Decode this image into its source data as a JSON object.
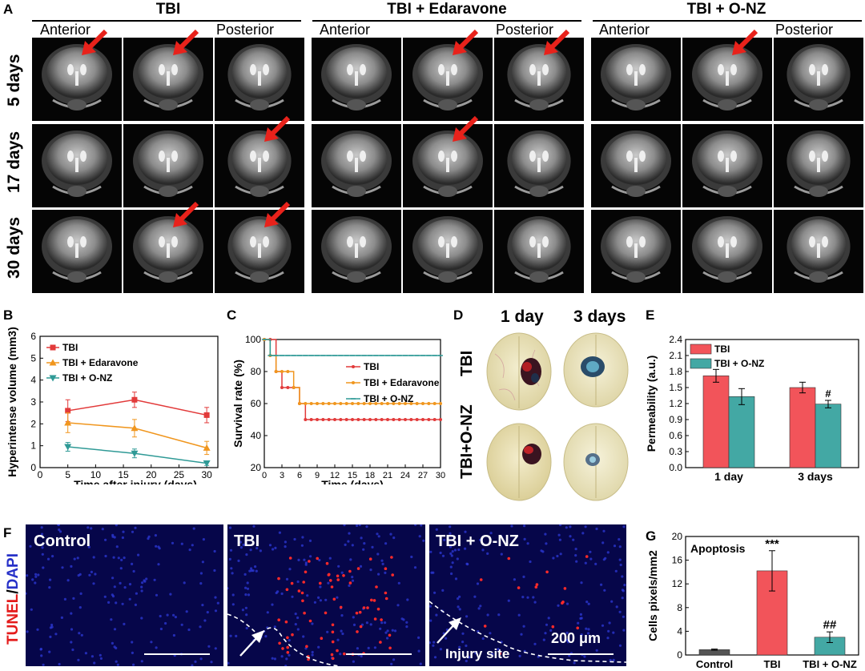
{
  "panel_letters": {
    "a": "A",
    "b": "B",
    "c": "C",
    "d": "D",
    "e": "E",
    "f": "F",
    "g": "G"
  },
  "panel_a": {
    "groups": [
      "TBI",
      "TBI + Edaravone",
      "TBI + O-NZ"
    ],
    "anterior_label": "Anterior",
    "posterior_label": "Posterior",
    "rows": [
      "5 days",
      "17 days",
      "30 days"
    ],
    "arrows": [
      [
        [
          true,
          true,
          false
        ],
        [
          false,
          true,
          true
        ],
        [
          false,
          true,
          false
        ]
      ],
      [
        [
          false,
          false,
          true
        ],
        [
          false,
          true,
          false
        ],
        [
          false,
          false,
          false
        ]
      ],
      [
        [
          false,
          true,
          true
        ],
        [
          false,
          false,
          false
        ],
        [
          false,
          false,
          false
        ]
      ]
    ],
    "arrow_color": "#e8221b"
  },
  "panel_d": {
    "col_labels": [
      "1 day",
      "3 days"
    ],
    "row_labels": [
      "TBI",
      "TBI+O-NZ"
    ]
  },
  "panel_f": {
    "side_label_red": "TUNEL",
    "side_label_sep": "/",
    "side_label_blue": "DAPI",
    "images": [
      "Control",
      "TBI",
      "TBI + O-NZ"
    ],
    "scale_bar": "200 μm",
    "injury_label": "Injury site"
  },
  "chart_data": [
    {
      "panel": "B",
      "type": "line",
      "xlabel": "Time after injury (days)",
      "ylabel": "Hyperintense volume (mm3)",
      "xlim": [
        0,
        32
      ],
      "ylim": [
        0,
        6
      ],
      "xticks": [
        0,
        5,
        10,
        15,
        20,
        25,
        30
      ],
      "yticks": [
        0,
        1,
        2,
        3,
        4,
        5,
        6
      ],
      "legend": "top-left",
      "x": [
        5,
        17,
        30
      ],
      "series": [
        {
          "name": "TBI",
          "values": [
            2.6,
            3.1,
            2.4
          ],
          "errors": [
            0.5,
            0.35,
            0.35
          ],
          "color": "#e23a3a",
          "marker": "square"
        },
        {
          "name": "TBI + Edaravone",
          "values": [
            2.05,
            1.8,
            0.9
          ],
          "errors": [
            0.45,
            0.4,
            0.3
          ],
          "color": "#f0961e",
          "marker": "triangle-up"
        },
        {
          "name": "TBI + O-NZ",
          "values": [
            0.95,
            0.65,
            0.2
          ],
          "errors": [
            0.2,
            0.2,
            0.1
          ],
          "color": "#2f9a96",
          "marker": "triangle-down"
        }
      ]
    },
    {
      "panel": "C",
      "type": "line",
      "step": true,
      "xlabel": "Time (days)",
      "ylabel": "Survival rate (%)",
      "xlim": [
        0,
        30
      ],
      "ylim": [
        20,
        100
      ],
      "xticks": [
        0,
        3,
        6,
        9,
        12,
        15,
        18,
        21,
        24,
        27,
        30
      ],
      "yticks": [
        20,
        40,
        60,
        80,
        100
      ],
      "legend": "right",
      "series": [
        {
          "name": "TBI",
          "color": "#e23a3a",
          "marker": "circle",
          "x": [
            0,
            1,
            2,
            3,
            4,
            5,
            6,
            7,
            8,
            9,
            10,
            11,
            12,
            13,
            14,
            15,
            16,
            17,
            18,
            19,
            20,
            21,
            22,
            23,
            24,
            25,
            26,
            27,
            28,
            29,
            30
          ],
          "values": [
            100,
            100,
            80,
            70,
            70,
            70,
            60,
            50,
            50,
            50,
            50,
            50,
            50,
            50,
            50,
            50,
            50,
            50,
            50,
            50,
            50,
            50,
            50,
            50,
            50,
            50,
            50,
            50,
            50,
            50,
            50
          ]
        },
        {
          "name": "TBI + Edaravone",
          "color": "#f0961e",
          "marker": "circle",
          "x": [
            0,
            1,
            2,
            3,
            4,
            5,
            6,
            7,
            8,
            9,
            10,
            11,
            12,
            13,
            14,
            15,
            16,
            17,
            18,
            19,
            20,
            21,
            22,
            23,
            24,
            25,
            26,
            27,
            28,
            29,
            30
          ],
          "values": [
            100,
            90,
            80,
            80,
            80,
            70,
            60,
            60,
            60,
            60,
            60,
            60,
            60,
            60,
            60,
            60,
            60,
            60,
            60,
            60,
            60,
            60,
            60,
            60,
            60,
            60,
            60,
            60,
            60,
            60,
            60
          ]
        },
        {
          "name": "TBI + O-NZ",
          "color": "#2f9a96",
          "marker": "dash",
          "x": [
            0,
            1,
            2,
            3,
            4,
            5,
            6,
            7,
            8,
            9,
            10,
            11,
            12,
            13,
            14,
            15,
            16,
            17,
            18,
            19,
            20,
            21,
            22,
            23,
            24,
            25,
            26,
            27,
            28,
            29,
            30
          ],
          "values": [
            100,
            90,
            90,
            90,
            90,
            90,
            90,
            90,
            90,
            90,
            90,
            90,
            90,
            90,
            90,
            90,
            90,
            90,
            90,
            90,
            90,
            90,
            90,
            90,
            90,
            90,
            90,
            90,
            90,
            90,
            90
          ]
        }
      ]
    },
    {
      "panel": "E",
      "type": "bar",
      "ylabel": "Permeability (a.u.)",
      "ylim": [
        0,
        2.4
      ],
      "yticks": [
        0.0,
        0.3,
        0.6,
        0.9,
        1.2,
        1.5,
        1.8,
        2.1,
        2.4
      ],
      "categories": [
        "1 day",
        "3 days"
      ],
      "legend": "top-left",
      "series": [
        {
          "name": "TBI",
          "values": [
            1.72,
            1.5
          ],
          "errors": [
            0.12,
            0.1
          ],
          "color": "#f2545a"
        },
        {
          "name": "TBI + O-NZ",
          "values": [
            1.33,
            1.19
          ],
          "errors": [
            0.15,
            0.07
          ],
          "color": "#43a8a4"
        }
      ],
      "annotations": [
        {
          "category": "3 days",
          "series": "TBI + O-NZ",
          "text": "#"
        }
      ]
    },
    {
      "panel": "G",
      "type": "bar",
      "title": "Apoptosis",
      "ylabel": "Cells pixels/mm2",
      "ylim": [
        0,
        20
      ],
      "yticks": [
        0,
        4,
        8,
        12,
        16,
        20
      ],
      "categories": [
        "Control",
        "TBI",
        "TBI + O-NZ"
      ],
      "values": [
        0.9,
        14.2,
        3.0
      ],
      "errors": [
        0.1,
        3.4,
        0.9
      ],
      "colors": [
        "#555555",
        "#f2545a",
        "#43a8a4"
      ],
      "annotations": [
        "",
        "***",
        "##"
      ]
    }
  ]
}
